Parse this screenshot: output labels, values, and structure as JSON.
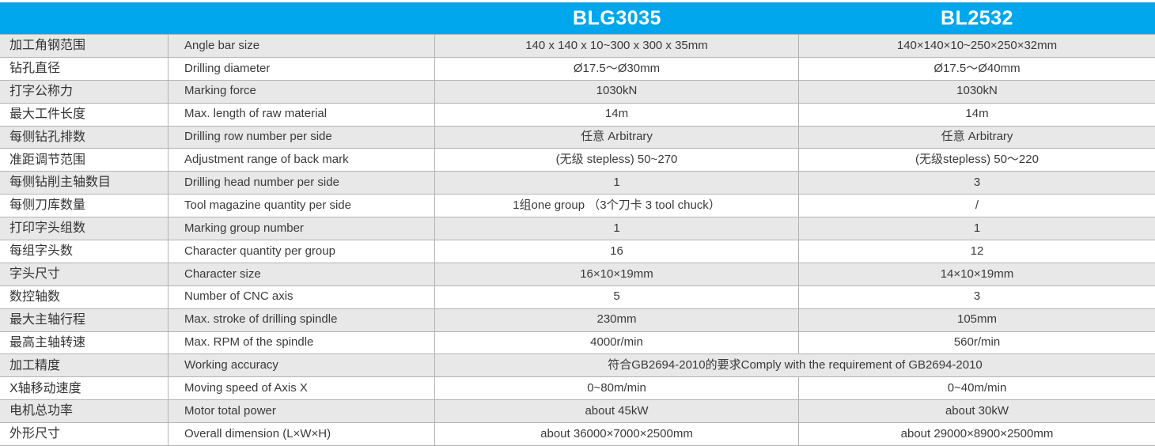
{
  "table": {
    "colors": {
      "accent": "#00a7ec",
      "row_alt": "#e8e8e8",
      "border": "#b3b3b3",
      "header_text": "#ffffff",
      "body_text": "#3a3a3a"
    },
    "header": {
      "model1": "BLG3035",
      "model2": "BL2532"
    },
    "rows": [
      {
        "cn": "加工角钢范围",
        "en": "Angle bar size",
        "v1": "140 x 140 x 10~300 x 300 x 35mm",
        "v2": "140×140×10~250×250×32mm"
      },
      {
        "cn": "钻孔直径",
        "en": "Drilling diameter",
        "v1": "Ø17.5～Ø30mm",
        "v2": "Ø17.5～Ø40mm"
      },
      {
        "cn": "打字公称力",
        "en": "Marking force",
        "v1": "1030kN",
        "v2": "1030kN"
      },
      {
        "cn": "最大工件长度",
        "en": "Max. length of raw material",
        "v1": "14m",
        "v2": "14m"
      },
      {
        "cn": "每侧钻孔排数",
        "en": "Drilling row number per side",
        "v1": "任意  Arbitrary",
        "v2": "任意  Arbitrary"
      },
      {
        "cn": "准距调节范围",
        "en": "Adjustment range of back mark",
        "v1": "(无级 stepless) 50~270",
        "v2": "(无级stepless) 50～220"
      },
      {
        "cn": "每侧钻削主轴数目",
        "en": "Drilling head number per side",
        "v1": "1",
        "v2": "3"
      },
      {
        "cn": "每侧刀库数量",
        "en": "Tool magazine quantity per side",
        "v1": "1组one group （3个刀卡  3 tool chuck）",
        "v2": "/"
      },
      {
        "cn": "打印字头组数",
        "en": "Marking group number",
        "v1": "1",
        "v2": "1"
      },
      {
        "cn": "每组字头数",
        "en": "Character quantity per group",
        "v1": "16",
        "v2": "12"
      },
      {
        "cn": "字头尺寸",
        "en": "Character size",
        "v1": "16×10×19mm",
        "v2": "14×10×19mm"
      },
      {
        "cn": "数控轴数",
        "en": "Number of CNC axis",
        "v1": "5",
        "v2": "3"
      },
      {
        "cn": "最大主轴行程",
        "en": "Max. stroke of drilling spindle",
        "v1": "230mm",
        "v2": "105mm"
      },
      {
        "cn": "最高主轴转速",
        "en": "Max. RPM of the spindle",
        "v1": "4000r/min",
        "v2": "560r/min"
      },
      {
        "cn": "加工精度",
        "en": "Working accuracy",
        "merged": "符合GB2694-2010的要求Comply with the requirement of GB2694-2010"
      },
      {
        "cn": "X轴移动速度",
        "en": "Moving speed of Axis X",
        "v1": "0~80m/min",
        "v2": "0~40m/min"
      },
      {
        "cn": "电机总功率",
        "en": "Motor total power",
        "v1": "about 45kW",
        "v2": "about 30kW"
      },
      {
        "cn": "外形尺寸",
        "en": "Overall dimension (L×W×H)",
        "v1": "about 36000×7000×2500mm",
        "v2": "about 29000×8900×2500mm"
      }
    ]
  }
}
